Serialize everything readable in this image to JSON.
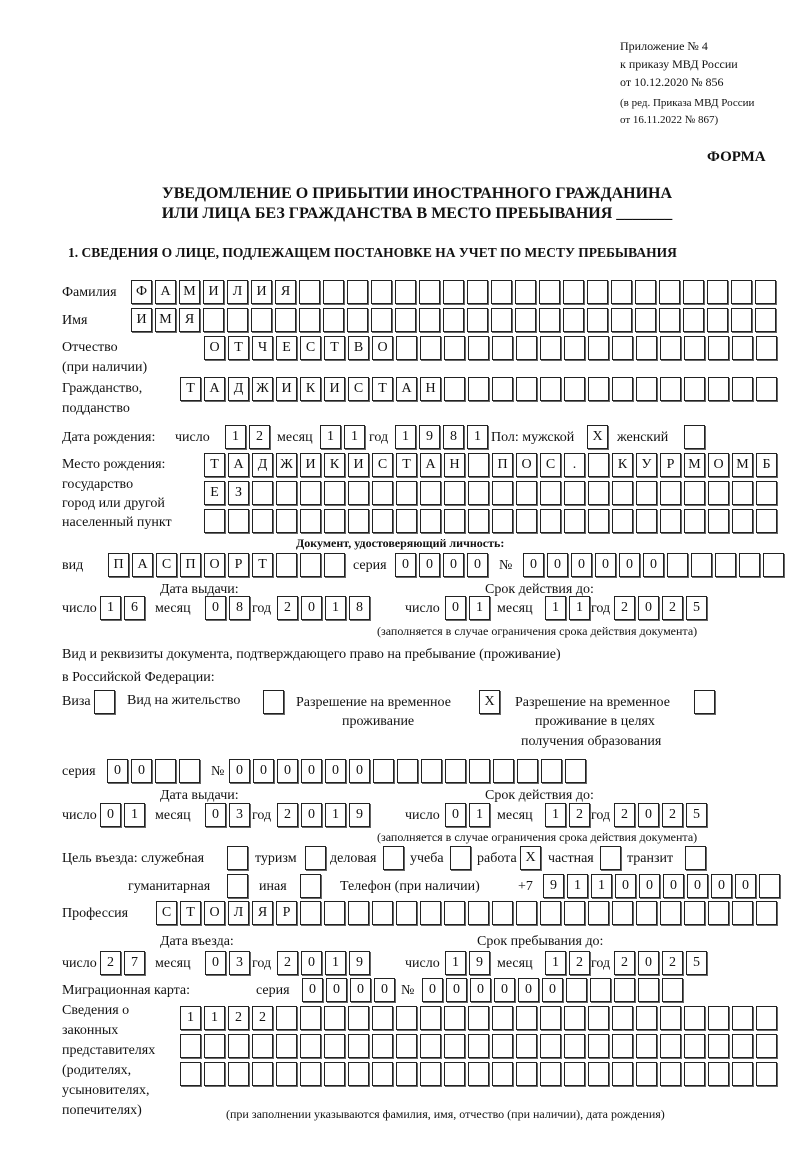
{
  "header": {
    "line1": "Приложение № 4",
    "line2": "к приказу МВД России",
    "line3": "от 10.12.2020 № 856",
    "line4": "(в ред. Приказа МВД России",
    "line5": "от 16.11.2022 № 867)",
    "form": "ФОРМА"
  },
  "title": {
    "line1": "УВЕДОМЛЕНИЕ О ПРИБЫТИИ ИНОСТРАННОГО ГРАЖДАНИНА",
    "line2": "ИЛИ ЛИЦА БЕЗ ГРАЖДАНСТВА В МЕСТО ПРЕБЫВАНИЯ _______"
  },
  "section1": "1. СВЕДЕНИЯ О ЛИЦЕ, ПОДЛЕЖАЩЕМ ПОСТАНОВКЕ НА УЧЕТ ПО МЕСТУ ПРЕБЫВАНИЯ",
  "person": {
    "surname_label": "Фамилия",
    "surname": "ФАМИЛИЯ",
    "name_label": "Имя",
    "name": "ИМЯ",
    "patronymic_label1": "Отчество",
    "patronymic_label2": "(при наличии)",
    "patronymic": "ОТЧЕСТВО",
    "citizenship_label1": "Гражданство,",
    "citizenship_label2": "подданство",
    "citizenship": "ТАДЖИКИСТАН",
    "birth_label": "Дата рождения:",
    "day_label": "число",
    "month_label": "месяц",
    "year_label": "год",
    "birth_day": "12",
    "birth_month": "11",
    "birth_year": "1981",
    "sex_label": "Пол: мужской",
    "female_label": "женский",
    "male_mark": "X",
    "female_mark": "",
    "birthplace_label1": "Место рождения:",
    "birthplace_label2": "государство",
    "birthplace_label3": "город или другой",
    "birthplace_label4": "населенный пункт",
    "birthplace_row1": "ТАДЖИКИСТАН ПОС. КУРМОМБ",
    "birthplace_row2": "ЕЗ",
    "birthplace_row3": ""
  },
  "identity_doc": {
    "heading": "Документ, удостоверяющий личность:",
    "type_label": "вид",
    "type": "ПАСПОРТ",
    "series_label": "серия",
    "series": "0000",
    "number_label": "№",
    "number": "000000",
    "issue_label": "Дата выдачи:",
    "valid_label": "Срок действия до:",
    "issue_day": "16",
    "issue_month": "08",
    "issue_year": "2018",
    "valid_day": "01",
    "valid_month": "11",
    "valid_year": "2025",
    "note": "(заполняется в случае ограничения срока действия документа)"
  },
  "stay_doc": {
    "heading1": "Вид и реквизиты документа, подтверждающего право на пребывание (проживание)",
    "heading2": "в Российской Федерации:",
    "visa_label": "Виза",
    "visa_mark": "",
    "residence_label": "Вид на жительство",
    "residence_mark": "",
    "trp_label1": "Разрешение на временное",
    "trp_label2": "проживание",
    "trp_mark": "X",
    "trp_edu_label1": "Разрешение на временное",
    "trp_edu_label2": "проживание в целях",
    "trp_edu_label3": "получения образования",
    "trp_edu_mark": "",
    "series_label": "серия",
    "series": "00",
    "number_label": "№",
    "number": "000000",
    "issue_label": "Дата выдачи:",
    "valid_label": "Срок действия до:",
    "issue_day": "01",
    "issue_month": "03",
    "issue_year": "2019",
    "valid_day": "01",
    "valid_month": "12",
    "valid_year": "2025",
    "note": "(заполняется в случае ограничения срока действия документа)"
  },
  "purpose": {
    "label": "Цель въезда: служебная",
    "service": "",
    "tourism_label": "туризм",
    "tourism": "",
    "business_label": "деловая",
    "business": "",
    "study_label": "учеба",
    "study": "",
    "work_label": "работа",
    "work": "X",
    "private_label": "частная",
    "private": "",
    "transit_label": "транзит",
    "transit": "",
    "humanitarian_label": "гуманитарная",
    "humanitarian": "",
    "other_label": "иная",
    "other": ""
  },
  "phone": {
    "label": "Телефон (при наличии)",
    "prefix": "+7",
    "value": "911000000"
  },
  "profession": {
    "label": "Профессия",
    "value": "СТОЛЯР"
  },
  "entry": {
    "entry_label": "Дата въезда:",
    "stay_label": "Срок пребывания до:",
    "entry_day": "27",
    "entry_month": "03",
    "entry_year": "2019",
    "stay_day": "19",
    "stay_month": "12",
    "stay_year": "2025"
  },
  "migration_card": {
    "label": "Миграционная карта:",
    "series_label": "серия",
    "series": "0000",
    "number_label": "№",
    "number": "000000"
  },
  "representatives": {
    "label1": "Сведения о",
    "label2": "законных",
    "label3": "представителях",
    "label4": "(родителях,",
    "label5": "усыновителях,",
    "label6": "попечителях)",
    "row1": "1122",
    "row2": "",
    "row3": "",
    "note": "(при заполнении указываются фамилия, имя, отчество (при наличии), дата рождения)"
  }
}
